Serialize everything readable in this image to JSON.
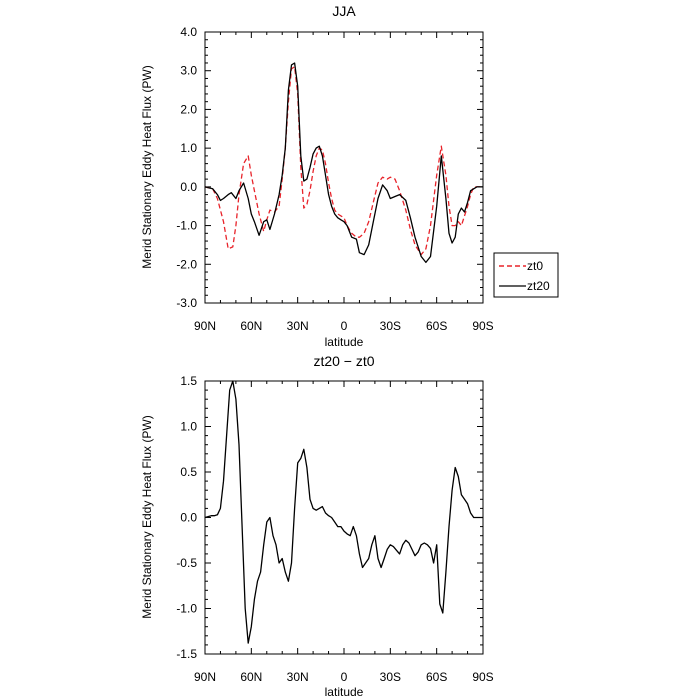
{
  "chart_data": [
    {
      "type": "line",
      "title": "JJA",
      "xlabel": "latitude",
      "ylabel": "Merid Stationary Eddy Heat Flux (PW)",
      "ylim": [
        -3.0,
        4.0
      ],
      "xlim": [
        90,
        -90
      ],
      "x_ticks": [
        "90N",
        "60N",
        "30N",
        "0",
        "30S",
        "60S",
        "90S"
      ],
      "y_ticks": [
        "-3.0",
        "-2.0",
        "-1.0",
        "0.0",
        "1.0",
        "2.0",
        "3.0",
        "4.0"
      ],
      "legend": {
        "placement": "right",
        "entries": [
          "zt0",
          "zt20"
        ]
      },
      "series": [
        {
          "name": "zt0",
          "color": "#e8232a",
          "style": "dashed",
          "x": [
            90,
            85,
            82,
            78,
            75,
            72,
            70,
            68,
            65,
            62,
            60,
            58,
            55,
            52,
            50,
            48,
            45,
            42,
            40,
            38,
            36,
            34,
            32,
            30,
            28,
            26,
            24,
            22,
            20,
            18,
            16,
            14,
            12,
            10,
            8,
            6,
            4,
            2,
            0,
            -2,
            -5,
            -8,
            -10,
            -13,
            -16,
            -19,
            -22,
            -25,
            -28,
            -30,
            -33,
            -36,
            -40,
            -43,
            -46,
            -50,
            -53,
            -56,
            -60,
            -63,
            -66,
            -68,
            -70,
            -72,
            -74,
            -76,
            -78,
            -80,
            -82,
            -84,
            -86,
            -88,
            -90
          ],
          "y": [
            0.0,
            -0.05,
            -0.3,
            -0.9,
            -1.6,
            -1.55,
            -1.0,
            -0.2,
            0.6,
            0.8,
            0.3,
            -0.1,
            -0.7,
            -1.15,
            -0.85,
            -0.6,
            -0.65,
            -0.5,
            0.2,
            1.0,
            2.2,
            3.05,
            3.1,
            2.4,
            0.5,
            -0.55,
            -0.45,
            -0.1,
            0.4,
            0.8,
            1.0,
            0.95,
            0.6,
            0.1,
            -0.3,
            -0.6,
            -0.7,
            -0.75,
            -0.8,
            -1.0,
            -1.2,
            -1.3,
            -1.3,
            -1.2,
            -0.9,
            -0.4,
            0.1,
            0.25,
            0.2,
            0.25,
            0.2,
            -0.1,
            -0.6,
            -1.1,
            -1.5,
            -1.75,
            -1.6,
            -1.0,
            0.3,
            1.05,
            0.3,
            -0.5,
            -1.0,
            -1.0,
            -0.9,
            -1.0,
            -0.75,
            -0.5,
            -0.2,
            0.0,
            0.0,
            0.0,
            0.0
          ]
        },
        {
          "name": "zt20",
          "color": "#000000",
          "style": "solid",
          "x": [
            90,
            85,
            82,
            80,
            78,
            75,
            73,
            70,
            68,
            65,
            62,
            60,
            58,
            55,
            52,
            50,
            48,
            45,
            42,
            40,
            38,
            36,
            34,
            32,
            30,
            28,
            26,
            24,
            22,
            20,
            18,
            16,
            14,
            12,
            10,
            8,
            6,
            4,
            2,
            0,
            -2,
            -5,
            -8,
            -10,
            -13,
            -16,
            -19,
            -22,
            -25,
            -28,
            -30,
            -33,
            -36,
            -40,
            -43,
            -46,
            -50,
            -53,
            -56,
            -60,
            -63,
            -66,
            -68,
            -70,
            -72,
            -74,
            -76,
            -78,
            -80,
            -82,
            -84,
            -86,
            -88,
            -90
          ],
          "y": [
            0.0,
            -0.05,
            -0.2,
            -0.35,
            -0.3,
            -0.2,
            -0.15,
            -0.3,
            -0.1,
            0.1,
            -0.3,
            -0.7,
            -0.9,
            -1.25,
            -0.9,
            -0.85,
            -1.1,
            -0.7,
            -0.2,
            0.3,
            1.0,
            2.5,
            3.15,
            3.2,
            2.6,
            0.8,
            0.15,
            0.2,
            0.5,
            0.85,
            1.0,
            1.05,
            0.8,
            0.3,
            -0.2,
            -0.5,
            -0.7,
            -0.8,
            -0.85,
            -0.9,
            -1.0,
            -1.3,
            -1.35,
            -1.7,
            -1.75,
            -1.5,
            -0.9,
            -0.3,
            0.05,
            -0.1,
            -0.3,
            -0.25,
            -0.2,
            -0.35,
            -0.8,
            -1.3,
            -1.8,
            -1.95,
            -1.8,
            -0.5,
            0.8,
            -0.3,
            -1.2,
            -1.45,
            -1.3,
            -0.7,
            -0.55,
            -0.65,
            -0.4,
            -0.1,
            -0.05,
            0.0,
            0.0,
            0.0
          ]
        }
      ]
    },
    {
      "type": "line",
      "title": "zt20 − zt0",
      "xlabel": "latitude",
      "ylabel": "Merid Stationary Eddy Heat Flux (PW)",
      "ylim": [
        -1.5,
        1.5
      ],
      "xlim": [
        90,
        -90
      ],
      "x_ticks": [
        "90N",
        "60N",
        "30N",
        "0",
        "30S",
        "60S",
        "90S"
      ],
      "y_ticks": [
        "-1.5",
        "-1.0",
        "-0.5",
        "0.0",
        "0.5",
        "1.0",
        "1.5"
      ],
      "series": [
        {
          "color": "#000000",
          "style": "solid",
          "x": [
            90,
            88,
            86,
            84,
            82,
            80,
            78,
            76,
            74,
            72,
            70,
            68,
            66,
            64,
            62,
            60,
            58,
            56,
            54,
            52,
            50,
            48,
            46,
            44,
            42,
            40,
            38,
            36,
            34,
            32,
            30,
            28,
            26,
            24,
            22,
            20,
            18,
            16,
            14,
            12,
            10,
            8,
            6,
            4,
            2,
            0,
            -2,
            -4,
            -6,
            -8,
            -10,
            -12,
            -14,
            -16,
            -18,
            -20,
            -22,
            -24,
            -26,
            -28,
            -30,
            -32,
            -34,
            -36,
            -38,
            -40,
            -42,
            -44,
            -46,
            -48,
            -50,
            -52,
            -54,
            -56,
            -58,
            -60,
            -62,
            -64,
            -66,
            -68,
            -70,
            -72,
            -74,
            -76,
            -78,
            -80,
            -82,
            -84,
            -86,
            -88,
            -90
          ],
          "y": [
            0.0,
            0.01,
            0.02,
            0.02,
            0.03,
            0.1,
            0.4,
            0.9,
            1.4,
            1.5,
            1.3,
            0.8,
            -0.1,
            -1.0,
            -1.38,
            -1.2,
            -0.9,
            -0.7,
            -0.6,
            -0.3,
            -0.05,
            0.0,
            -0.2,
            -0.3,
            -0.5,
            -0.45,
            -0.6,
            -0.7,
            -0.5,
            0.1,
            0.6,
            0.65,
            0.75,
            0.55,
            0.2,
            0.1,
            0.08,
            0.1,
            0.12,
            0.05,
            0.02,
            0.0,
            -0.05,
            -0.1,
            -0.1,
            -0.15,
            -0.18,
            -0.2,
            -0.1,
            -0.2,
            -0.4,
            -0.55,
            -0.5,
            -0.45,
            -0.3,
            -0.2,
            -0.45,
            -0.55,
            -0.45,
            -0.35,
            -0.3,
            -0.32,
            -0.36,
            -0.4,
            -0.3,
            -0.25,
            -0.28,
            -0.35,
            -0.42,
            -0.38,
            -0.3,
            -0.28,
            -0.3,
            -0.34,
            -0.5,
            -0.3,
            -0.95,
            -1.05,
            -0.6,
            -0.1,
            0.3,
            0.55,
            0.45,
            0.25,
            0.2,
            0.15,
            0.05,
            0.0,
            0.0,
            0.0,
            0.0
          ]
        }
      ]
    }
  ]
}
